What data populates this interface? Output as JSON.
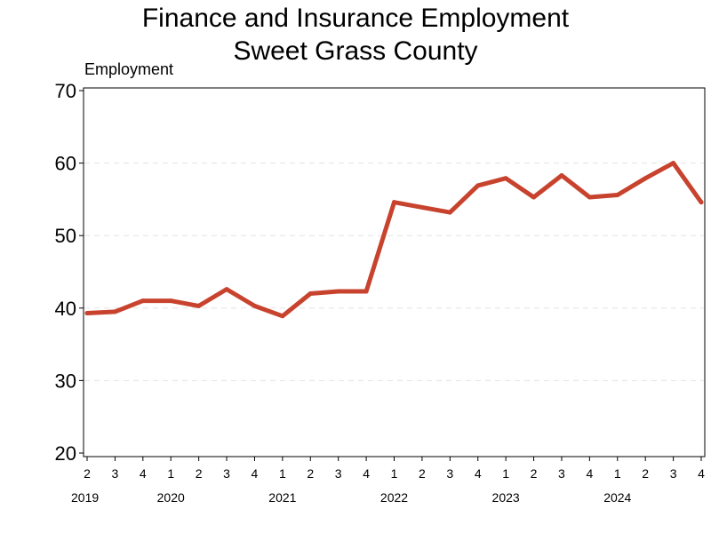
{
  "chart_data": {
    "type": "line",
    "title": "Finance and Insurance Employment",
    "subtitle": "Sweet Grass County",
    "ylabel": "Employment",
    "xlabel": "",
    "ylim": [
      20,
      70
    ],
    "yticks": [
      20,
      30,
      40,
      50,
      60,
      70
    ],
    "grid": "horizontal dashed",
    "x": [
      "2019 Q2",
      "2019 Q3",
      "2019 Q4",
      "2020 Q1",
      "2020 Q2",
      "2020 Q3",
      "2020 Q4",
      "2021 Q1",
      "2021 Q2",
      "2021 Q3",
      "2021 Q4",
      "2022 Q1",
      "2022 Q2",
      "2022 Q3",
      "2022 Q4",
      "2023 Q1",
      "2023 Q2",
      "2023 Q3",
      "2023 Q4",
      "2024 Q1",
      "2024 Q2",
      "2024 Q3",
      "2024 Q4"
    ],
    "quarter_labels": [
      "2",
      "3",
      "4",
      "1",
      "2",
      "3",
      "4",
      "1",
      "2",
      "3",
      "4",
      "1",
      "2",
      "3",
      "4",
      "1",
      "2",
      "3",
      "4",
      "1",
      "2",
      "3",
      "4"
    ],
    "year_labels": [
      {
        "label": "2019",
        "index": 0
      },
      {
        "label": "2020",
        "index": 3
      },
      {
        "label": "2021",
        "index": 7
      },
      {
        "label": "2022",
        "index": 11
      },
      {
        "label": "2023",
        "index": 15
      },
      {
        "label": "2024",
        "index": 19
      }
    ],
    "series": [
      {
        "name": "",
        "color": "#c8432e",
        "values": [
          39.3,
          39.5,
          41,
          41,
          40.3,
          42.6,
          40.3,
          38.9,
          42,
          42.3,
          42.3,
          54.6,
          53.9,
          53.2,
          56.9,
          57.9,
          55.3,
          58.3,
          55.3,
          55.6,
          57.9,
          60,
          54.6
        ]
      }
    ]
  }
}
